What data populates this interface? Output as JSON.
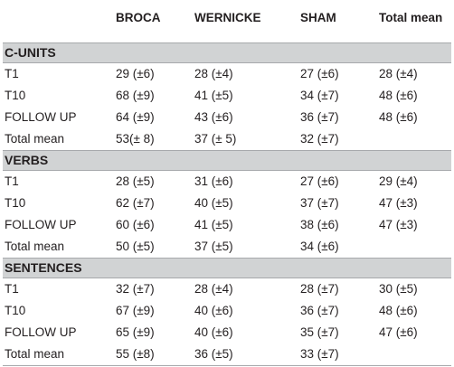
{
  "header": {
    "col0": "",
    "col1": "BROCA",
    "col2": "WERNICKE",
    "col3": "SHAM",
    "col4": "Total mean"
  },
  "sections": [
    {
      "title": "C-UNITS",
      "rows": [
        {
          "label": "T1",
          "broca": "29 (±6)",
          "wernicke": "28 (±4)",
          "sham": "27 (±6)",
          "total": "28 (±4)"
        },
        {
          "label": "T10",
          "broca": "68 (±9)",
          "wernicke": "41 (±5)",
          "sham": "34 (±7)",
          "total": "48 (±6)"
        },
        {
          "label": "FOLLOW UP",
          "broca": "64 (±9)",
          "wernicke": "43 (±6)",
          "sham": "36 (±7)",
          "total": "48 (±6)"
        },
        {
          "label": "Total mean",
          "broca": "53(± 8)",
          "wernicke": "37 (± 5)",
          "sham": "32 (±7)",
          "total": ""
        }
      ]
    },
    {
      "title": "VERBS",
      "rows": [
        {
          "label": "T1",
          "broca": "28 (±5)",
          "wernicke": "31 (±6)",
          "sham": "27 (±6)",
          "total": "29 (±4)"
        },
        {
          "label": "T10",
          "broca": "62 (±7)",
          "wernicke": "40 (±5)",
          "sham": "37 (±7)",
          "total": "47 (±3)"
        },
        {
          "label": "FOLLOW UP",
          "broca": "60 (±6)",
          "wernicke": "41 (±5)",
          "sham": "38 (±6)",
          "total": "47 (±3)"
        },
        {
          "label": "Total mean",
          "broca": "50 (±5)",
          "wernicke": "37 (±5)",
          "sham": "34 (±6)",
          "total": ""
        }
      ]
    },
    {
      "title": "SENTENCES",
      "rows": [
        {
          "label": "T1",
          "broca": "32 (±7)",
          "wernicke": "28 (±4)",
          "sham": "28 (±7)",
          "total": "30 (±5)"
        },
        {
          "label": "T10",
          "broca": "67 (±9)",
          "wernicke": "40 (±6)",
          "sham": "36 (±7)",
          "total": "48 (±6)"
        },
        {
          "label": "FOLLOW UP",
          "broca": "65 (±9)",
          "wernicke": "40 (±6)",
          "sham": "35 (±7)",
          "total": "47 (±6)"
        },
        {
          "label": "Total mean",
          "broca": "55 (±8)",
          "wernicke": "36 (±5)",
          "sham": "33 (±7)",
          "total": ""
        }
      ]
    }
  ]
}
